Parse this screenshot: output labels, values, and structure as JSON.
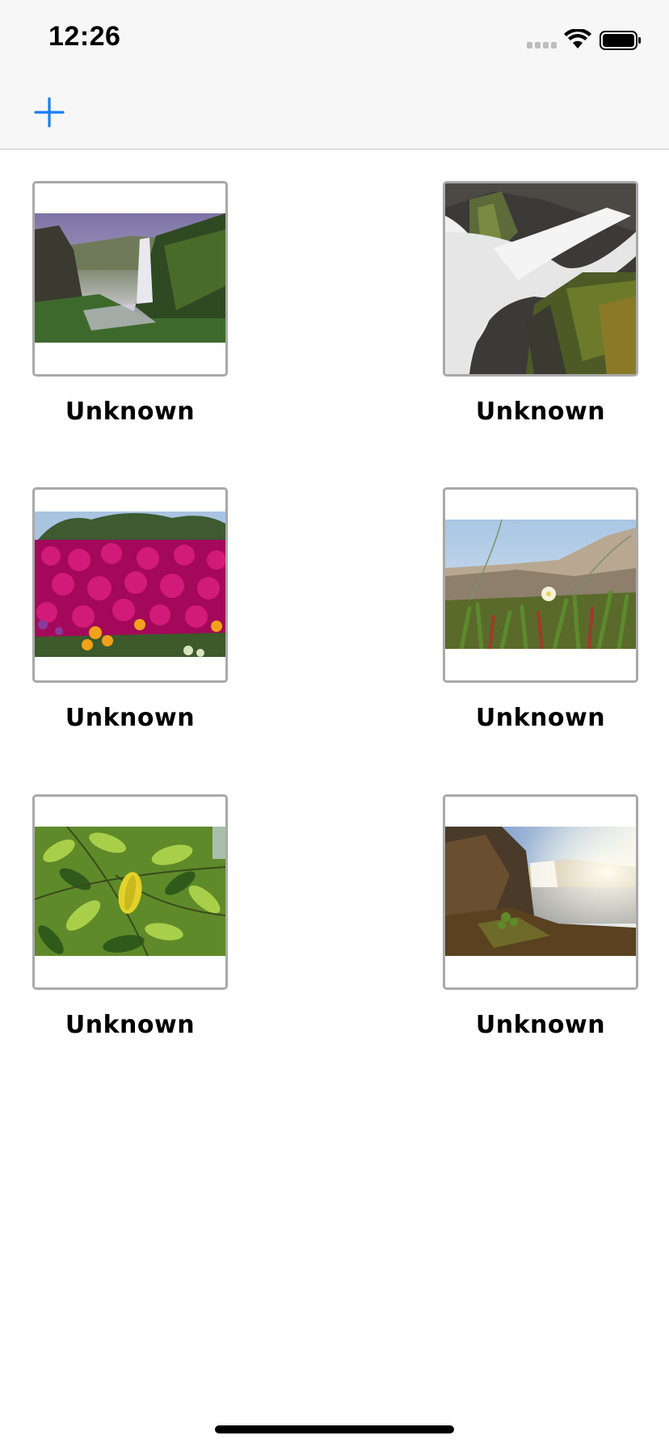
{
  "status_bar": {
    "time": "12:26",
    "icons": [
      "cellular-signal-icon",
      "wifi-icon",
      "battery-icon"
    ]
  },
  "navbar": {
    "add_icon": "plus-icon",
    "accent_color": "#1a7cf4"
  },
  "photos": [
    {
      "caption": "Unknown",
      "scene": "waterfall-valley"
    },
    {
      "caption": "Unknown",
      "scene": "waterfall-closeup"
    },
    {
      "caption": "Unknown",
      "scene": "pink-flowers"
    },
    {
      "caption": "Unknown",
      "scene": "beach-grass"
    },
    {
      "caption": "Unknown",
      "scene": "green-leaves"
    },
    {
      "caption": "Unknown",
      "scene": "coastal-waterfall"
    }
  ]
}
